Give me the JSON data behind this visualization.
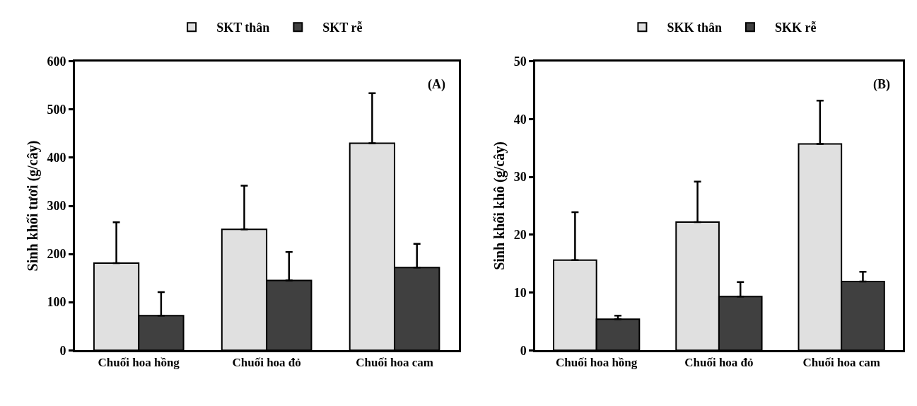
{
  "chart_data": [
    {
      "type": "bar",
      "categories": [
        "Chuối hoa hồng",
        "Chuối hoa đỏ",
        "Chuối hoa cam"
      ],
      "ylabel": "Sinh khối tươi (g/cây)",
      "ylim": [
        0,
        600
      ],
      "yticks": [
        0,
        100,
        200,
        300,
        400,
        500,
        600
      ],
      "legend": "top",
      "annotations": [
        "(A)"
      ],
      "series": [
        {
          "name": "SKT thân",
          "color": "#e0e0e0",
          "values": [
            181,
            251,
            430
          ],
          "errors": [
            [
              181,
              266
            ],
            [
              251,
              342
            ],
            [
              430,
              534
            ]
          ]
        },
        {
          "name": "SKT rễ",
          "color": "#404040",
          "values": [
            72,
            145,
            172
          ],
          "errors": [
            [
              72,
              121
            ],
            [
              145,
              204
            ],
            [
              172,
              221
            ]
          ]
        }
      ]
    },
    {
      "type": "bar",
      "categories": [
        "Chuối hoa hồng",
        "Chuối hoa đỏ",
        "Chuối hoa cam"
      ],
      "ylabel": "Sinh khối khô (g/cây)",
      "ylim": [
        0,
        50
      ],
      "yticks": [
        0,
        10,
        20,
        30,
        40,
        50
      ],
      "legend": "top",
      "annotations": [
        "(B)"
      ],
      "series": [
        {
          "name": "SKK thân",
          "color": "#e0e0e0",
          "values": [
            15.6,
            22.2,
            35.7
          ],
          "errors": [
            [
              15.6,
              23.9
            ],
            [
              22.2,
              29.2
            ],
            [
              35.7,
              43.2
            ]
          ]
        },
        {
          "name": "SKK rễ",
          "color": "#404040",
          "values": [
            5.4,
            9.3,
            11.9
          ],
          "errors": [
            [
              5.4,
              6.0
            ],
            [
              9.3,
              11.8
            ],
            [
              11.9,
              13.6
            ]
          ]
        }
      ]
    }
  ]
}
